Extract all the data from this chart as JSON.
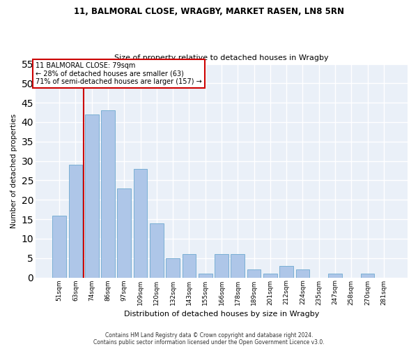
{
  "title1": "11, BALMORAL CLOSE, WRAGBY, MARKET RASEN, LN8 5RN",
  "title2": "Size of property relative to detached houses in Wragby",
  "xlabel": "Distribution of detached houses by size in Wragby",
  "ylabel": "Number of detached properties",
  "categories": [
    "51sqm",
    "63sqm",
    "74sqm",
    "86sqm",
    "97sqm",
    "109sqm",
    "120sqm",
    "132sqm",
    "143sqm",
    "155sqm",
    "166sqm",
    "178sqm",
    "189sqm",
    "201sqm",
    "212sqm",
    "224sqm",
    "235sqm",
    "247sqm",
    "258sqm",
    "270sqm",
    "281sqm"
  ],
  "values": [
    16,
    29,
    42,
    43,
    23,
    28,
    14,
    5,
    6,
    1,
    6,
    6,
    2,
    1,
    3,
    2,
    0,
    1,
    0,
    1,
    0
  ],
  "bar_color": "#aec6e8",
  "bar_edge_color": "#7aafd4",
  "annotation_box_text": "11 BALMORAL CLOSE: 79sqm\n← 28% of detached houses are smaller (63)\n71% of semi-detached houses are larger (157) →",
  "annotation_box_color": "#ffffff",
  "annotation_box_edge_color": "#cc0000",
  "vline_x": 1.5,
  "vline_color": "#cc0000",
  "ylim": [
    0,
    55
  ],
  "yticks": [
    0,
    5,
    10,
    15,
    20,
    25,
    30,
    35,
    40,
    45,
    50,
    55
  ],
  "bg_color": "#eaf0f8",
  "grid_color": "#ffffff",
  "footnote1": "Contains HM Land Registry data © Crown copyright and database right 2024.",
  "footnote2": "Contains public sector information licensed under the Open Government Licence v3.0."
}
